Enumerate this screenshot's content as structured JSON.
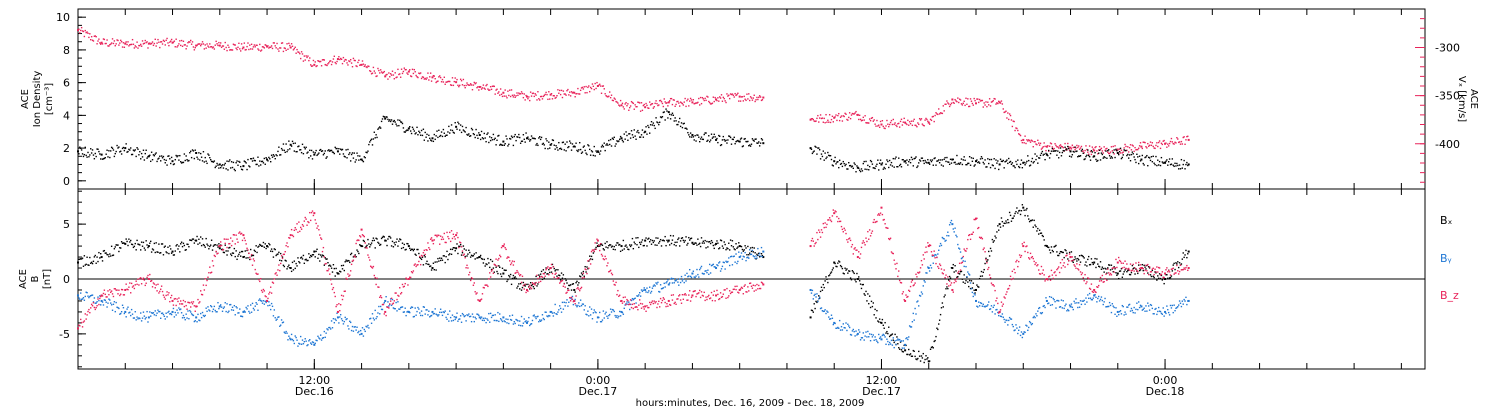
{
  "colors": {
    "black": "#000000",
    "red": "#e8235a",
    "blue": "#1f77d4"
  },
  "x_axis": {
    "label": "hours:minutes, Dec. 16, 2009 - Dec. 18, 2009",
    "range_hours": [
      0,
      57
    ],
    "major_ticks": [
      {
        "hour": 10,
        "time": "12:00",
        "date": "Dec.16"
      },
      {
        "hour": 22,
        "time": "0:00",
        "date": "Dec.17"
      },
      {
        "hour": 34,
        "time": "12:00",
        "date": "Dec.17"
      },
      {
        "hour": 46,
        "time": "0:00",
        "date": "Dec.18"
      }
    ],
    "minor_tick_step_hours": 2
  },
  "chart_data": [
    {
      "type": "scatter",
      "panel": "top",
      "left_axis": {
        "label_lines": [
          "ACE",
          "Ion Density",
          "[cm⁻³]"
        ],
        "ylim": [
          -0.5,
          10.5
        ],
        "ticks": [
          0,
          2,
          4,
          6,
          8,
          10
        ]
      },
      "right_axis": {
        "label_lines": [
          "ACE",
          "Vₓ [km/s]"
        ],
        "ylim": [
          -447,
          -260
        ],
        "ticks": [
          -300,
          -350,
          -400
        ],
        "color": "#e8235a"
      },
      "series": [
        {
          "axis": "left",
          "color": "#000000",
          "points": [
            [
              0,
              1.8
            ],
            [
              1,
              1.6
            ],
            [
              2,
              2.0
            ],
            [
              3,
              1.5
            ],
            [
              4,
              1.2
            ],
            [
              5,
              1.7
            ],
            [
              6,
              1.0
            ],
            [
              7,
              0.9
            ],
            [
              8,
              1.3
            ],
            [
              9,
              2.2
            ],
            [
              10,
              1.6
            ],
            [
              11,
              1.8
            ],
            [
              12,
              1.3
            ],
            [
              13,
              3.8
            ],
            [
              14,
              3.2
            ],
            [
              15,
              2.6
            ],
            [
              16,
              3.3
            ],
            [
              17,
              2.8
            ],
            [
              18,
              2.4
            ],
            [
              19,
              2.6
            ],
            [
              20,
              2.2
            ],
            [
              21,
              2.1
            ],
            [
              22,
              1.8
            ],
            [
              23,
              2.6
            ],
            [
              24,
              3.0
            ],
            [
              25,
              4.2
            ],
            [
              26,
              2.8
            ],
            [
              27,
              2.5
            ],
            [
              28,
              2.4
            ],
            [
              29,
              2.3
            ],
            [
              31,
              2.0
            ],
            [
              32,
              1.2
            ],
            [
              33,
              0.8
            ],
            [
              34,
              1.0
            ],
            [
              35,
              1.2
            ],
            [
              36,
              1.1
            ],
            [
              37,
              1.3
            ],
            [
              38,
              1.2
            ],
            [
              39,
              1.0
            ],
            [
              40,
              1.1
            ],
            [
              41,
              1.6
            ],
            [
              42,
              1.8
            ],
            [
              43,
              1.5
            ],
            [
              44,
              1.7
            ],
            [
              45,
              1.3
            ],
            [
              46,
              1.1
            ],
            [
              47,
              1.0
            ]
          ]
        },
        {
          "axis": "right",
          "color": "#e8235a",
          "points": [
            [
              0,
              -282
            ],
            [
              1,
              -295
            ],
            [
              2,
              -296
            ],
            [
              3,
              -296
            ],
            [
              4,
              -295
            ],
            [
              5,
              -298
            ],
            [
              6,
              -298
            ],
            [
              7,
              -300
            ],
            [
              8,
              -299
            ],
            [
              9,
              -300
            ],
            [
              10,
              -318
            ],
            [
              11,
              -312
            ],
            [
              12,
              -318
            ],
            [
              13,
              -330
            ],
            [
              14,
              -325
            ],
            [
              15,
              -331
            ],
            [
              16,
              -336
            ],
            [
              17,
              -341
            ],
            [
              18,
              -347
            ],
            [
              19,
              -351
            ],
            [
              20,
              -349
            ],
            [
              21,
              -347
            ],
            [
              22,
              -340
            ],
            [
              23,
              -360
            ],
            [
              24,
              -362
            ],
            [
              25,
              -357
            ],
            [
              26,
              -357
            ],
            [
              27,
              -354
            ],
            [
              28,
              -351
            ],
            [
              29,
              -352
            ],
            [
              31,
              -375
            ],
            [
              32,
              -373
            ],
            [
              33,
              -370
            ],
            [
              34,
              -380
            ],
            [
              35,
              -378
            ],
            [
              36,
              -378
            ],
            [
              37,
              -354
            ],
            [
              38,
              -358
            ],
            [
              39,
              -357
            ],
            [
              40,
              -396
            ],
            [
              41,
              -403
            ],
            [
              42,
              -404
            ],
            [
              43,
              -407
            ],
            [
              44,
              -406
            ],
            [
              45,
              -403
            ],
            [
              46,
              -400
            ],
            [
              47,
              -396
            ]
          ]
        }
      ]
    },
    {
      "type": "scatter",
      "panel": "bottom",
      "left_axis": {
        "label_lines": [
          "ACE",
          "B",
          "[nT]"
        ],
        "ylim": [
          -8.2,
          8.2
        ],
        "ticks": [
          -5,
          0,
          5
        ]
      },
      "series": [
        {
          "name": "Bₓ",
          "color": "#000000",
          "points": [
            [
              0,
              1.5
            ],
            [
              1,
              2.0
            ],
            [
              2,
              3.2
            ],
            [
              3,
              3.0
            ],
            [
              4,
              2.5
            ],
            [
              5,
              3.5
            ],
            [
              6,
              2.8
            ],
            [
              7,
              2.0
            ],
            [
              8,
              3.0
            ],
            [
              9,
              1.0
            ],
            [
              10,
              2.5
            ],
            [
              11,
              0.5
            ],
            [
              12,
              3.0
            ],
            [
              13,
              3.5
            ],
            [
              14,
              3.0
            ],
            [
              15,
              1.0
            ],
            [
              16,
              2.8
            ],
            [
              17,
              2.0
            ],
            [
              18,
              0.5
            ],
            [
              19,
              -1.0
            ],
            [
              20,
              1.0
            ],
            [
              21,
              -1.0
            ],
            [
              22,
              3.0
            ],
            [
              23,
              3.0
            ],
            [
              24,
              3.5
            ],
            [
              25,
              3.5
            ],
            [
              26,
              3.3
            ],
            [
              27,
              3.2
            ],
            [
              28,
              3.0
            ],
            [
              29,
              2.0
            ],
            [
              31,
              -3.5
            ],
            [
              32,
              1.5
            ],
            [
              33,
              0
            ],
            [
              34,
              -4.0
            ],
            [
              35,
              -6.5
            ],
            [
              36,
              -7.5
            ],
            [
              37,
              1.0
            ],
            [
              38,
              -1.0
            ],
            [
              39,
              5.0
            ],
            [
              40,
              6.5
            ],
            [
              41,
              3.0
            ],
            [
              42,
              2.0
            ],
            [
              43,
              1.5
            ],
            [
              44,
              0.5
            ],
            [
              45,
              1.0
            ],
            [
              46,
              0
            ],
            [
              47,
              2.5
            ]
          ]
        },
        {
          "name": "Bᵧ",
          "color": "#1f77d4",
          "points": [
            [
              0,
              -1.5
            ],
            [
              1,
              -2.0
            ],
            [
              2,
              -3.0
            ],
            [
              3,
              -3.5
            ],
            [
              4,
              -3.0
            ],
            [
              5,
              -3.5
            ],
            [
              6,
              -2.5
            ],
            [
              7,
              -3.0
            ],
            [
              8,
              -2.0
            ],
            [
              9,
              -5.5
            ],
            [
              10,
              -6.0
            ],
            [
              11,
              -3.5
            ],
            [
              12,
              -5.0
            ],
            [
              13,
              -2.0
            ],
            [
              14,
              -3.0
            ],
            [
              15,
              -3.0
            ],
            [
              16,
              -3.5
            ],
            [
              17,
              -3.5
            ],
            [
              18,
              -3.5
            ],
            [
              19,
              -4.0
            ],
            [
              20,
              -3.0
            ],
            [
              21,
              -2.0
            ],
            [
              22,
              -3.5
            ],
            [
              23,
              -3.0
            ],
            [
              24,
              -1.0
            ],
            [
              25,
              -0.5
            ],
            [
              26,
              0.5
            ],
            [
              27,
              1.0
            ],
            [
              28,
              2.0
            ],
            [
              29,
              2.5
            ],
            [
              31,
              -1.0
            ],
            [
              32,
              -4.0
            ],
            [
              33,
              -5.0
            ],
            [
              34,
              -5.5
            ],
            [
              35,
              -6.0
            ],
            [
              36,
              1.0
            ],
            [
              37,
              5.0
            ],
            [
              38,
              -2.0
            ],
            [
              39,
              -3.0
            ],
            [
              40,
              -5.0
            ],
            [
              41,
              -2.0
            ],
            [
              42,
              -2.5
            ],
            [
              43,
              -1.5
            ],
            [
              44,
              -3.0
            ],
            [
              45,
              -2.5
            ],
            [
              46,
              -3.0
            ],
            [
              47,
              -2.0
            ]
          ]
        },
        {
          "name": "B_z",
          "color": "#e8235a",
          "points": [
            [
              0,
              -4.5
            ],
            [
              1,
              -1.5
            ],
            [
              2,
              -1.0
            ],
            [
              3,
              0
            ],
            [
              4,
              -2.0
            ],
            [
              5,
              -2.5
            ],
            [
              6,
              3.0
            ],
            [
              7,
              4.0
            ],
            [
              8,
              -2.0
            ],
            [
              9,
              4.0
            ],
            [
              10,
              6.0
            ],
            [
              11,
              -3.0
            ],
            [
              12,
              4.5
            ],
            [
              13,
              -3.0
            ],
            [
              14,
              0
            ],
            [
              15,
              3.5
            ],
            [
              16,
              4.0
            ],
            [
              17,
              -2.0
            ],
            [
              18,
              3.0
            ],
            [
              19,
              -1.0
            ],
            [
              20,
              1.0
            ],
            [
              21,
              -2.0
            ],
            [
              22,
              3.5
            ],
            [
              23,
              -2.0
            ],
            [
              24,
              -2.5
            ],
            [
              25,
              -2.0
            ],
            [
              26,
              -1.5
            ],
            [
              27,
              -1.5
            ],
            [
              28,
              -1.0
            ],
            [
              29,
              -0.5
            ],
            [
              31,
              3.0
            ],
            [
              32,
              6.0
            ],
            [
              33,
              2.0
            ],
            [
              34,
              6.5
            ],
            [
              35,
              -2.0
            ],
            [
              36,
              3.0
            ],
            [
              37,
              -1.0
            ],
            [
              38,
              5.5
            ],
            [
              39,
              -3.0
            ],
            [
              40,
              3.0
            ],
            [
              41,
              0
            ],
            [
              42,
              2.0
            ],
            [
              43,
              -1.0
            ],
            [
              44,
              1.5
            ],
            [
              45,
              1.0
            ],
            [
              46,
              0.5
            ],
            [
              47,
              1.0
            ]
          ]
        }
      ]
    }
  ]
}
